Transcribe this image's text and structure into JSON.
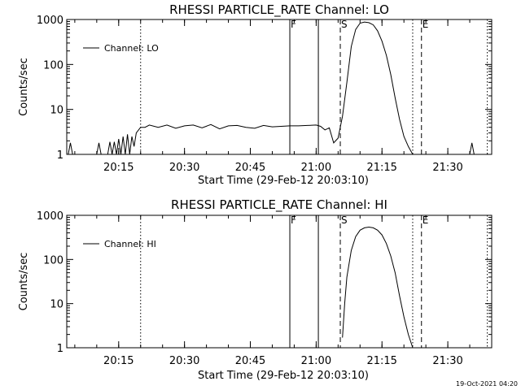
{
  "footer": {
    "timestamp": "19-Oct-2021 04:20"
  },
  "markers": {
    "flare_start": "F",
    "saa_start": "S",
    "saa_end": "E"
  },
  "chart_data": [
    {
      "type": "line",
      "title": "RHESSI PARTICLE_RATE Channel: LO",
      "ylabel": "Counts/sec",
      "xlabel": "Start Time (29-Feb-12 20:03:10)",
      "y_scale": "log",
      "ylim": [
        1,
        1000
      ],
      "xlim": [
        "20:03:10",
        "21:40:00"
      ],
      "x_ticks": [
        "20:15",
        "20:30",
        "20:45",
        "21:00",
        "21:15",
        "21:30"
      ],
      "y_ticks": [
        "1",
        "10",
        "100",
        "1000"
      ],
      "legend": {
        "entry": "Channel: LO",
        "placement": "top-left"
      },
      "vlines": [
        {
          "time": "20:20:00",
          "style": "dotted"
        },
        {
          "time": "20:54:00",
          "style": "solid",
          "label": "F"
        },
        {
          "time": "21:00:30",
          "style": "solid"
        },
        {
          "time": "21:05:30",
          "style": "dashed",
          "label": "S"
        },
        {
          "time": "21:22:00",
          "style": "dotted"
        },
        {
          "time": "21:24:00",
          "style": "dashed",
          "label": "E"
        },
        {
          "time": "21:39:00",
          "style": "dotted"
        }
      ],
      "series": [
        {
          "x": [
            "20:03:30",
            "20:04:00",
            "20:04:30",
            "20:05:00",
            "20:10:00",
            "20:10:30",
            "20:11:00",
            "20:12:00",
            "20:12:30",
            "20:13:00",
            "20:13:30",
            "20:14:00",
            "20:14:30",
            "20:15:00",
            "20:15:30",
            "20:16:00",
            "20:16:30",
            "20:17:00",
            "20:17:30",
            "20:18:00",
            "20:18:30",
            "20:19:00",
            "20:20:00",
            "20:21:00",
            "20:22:00",
            "20:24:00",
            "20:26:00",
            "20:28:00",
            "20:30:00",
            "20:32:00",
            "20:34:00",
            "20:36:00",
            "20:38:00",
            "20:40:00",
            "20:42:00",
            "20:44:00",
            "20:46:00",
            "20:48:00",
            "20:50:00",
            "20:52:00",
            "20:54:00",
            "20:56:00",
            "20:58:00",
            "21:00:00",
            "21:01:00",
            "21:02:00",
            "21:03:00",
            "21:04:00",
            "21:05:00",
            "21:06:00",
            "21:07:00",
            "21:08:00",
            "21:09:00",
            "21:10:00",
            "21:11:00",
            "21:12:00",
            "21:13:00",
            "21:14:00",
            "21:15:00",
            "21:16:00",
            "21:17:00",
            "21:18:00",
            "21:19:00",
            "21:20:00",
            "21:21:00",
            "21:22:00",
            "21:23:00",
            "21:24:00",
            "21:24:30",
            "21:35:00",
            "21:35:30",
            "21:36:00"
          ],
          "y": [
            1,
            1.8,
            1,
            1,
            1,
            1.8,
            1,
            1,
            1,
            1.9,
            1,
            1.9,
            1,
            2.2,
            1,
            2.5,
            1,
            2.8,
            1,
            2.5,
            1.5,
            3,
            4,
            4,
            4.5,
            4,
            4.5,
            3.8,
            4.3,
            4.5,
            3.9,
            4.6,
            3.7,
            4.3,
            4.4,
            4,
            3.8,
            4.4,
            4.1,
            4.2,
            4.3,
            4.3,
            4.4,
            4.5,
            4.2,
            3.5,
            3.9,
            1.8,
            2.3,
            7,
            40,
            250,
            600,
            830,
            880,
            850,
            760,
            560,
            330,
            160,
            60,
            18,
            6,
            2.5,
            1.5,
            1,
            1,
            1,
            1,
            1,
            1.8,
            1
          ]
        }
      ]
    },
    {
      "type": "line",
      "title": "RHESSI PARTICLE_RATE Channel: HI",
      "ylabel": "Counts/sec",
      "xlabel": "Start Time (29-Feb-12 20:03:10)",
      "y_scale": "log",
      "ylim": [
        1,
        1000
      ],
      "xlim": [
        "20:03:10",
        "21:40:00"
      ],
      "x_ticks": [
        "20:15",
        "20:30",
        "20:45",
        "21:00",
        "21:15",
        "21:30"
      ],
      "y_ticks": [
        "1",
        "10",
        "100",
        "1000"
      ],
      "legend": {
        "entry": "Channel: HI",
        "placement": "top-left"
      },
      "vlines": [
        {
          "time": "20:20:00",
          "style": "dotted"
        },
        {
          "time": "20:54:00",
          "style": "solid",
          "label": "F"
        },
        {
          "time": "21:00:30",
          "style": "solid"
        },
        {
          "time": "21:05:30",
          "style": "dashed",
          "label": "S"
        },
        {
          "time": "21:22:00",
          "style": "dotted"
        },
        {
          "time": "21:24:00",
          "style": "dashed",
          "label": "E"
        },
        {
          "time": "21:39:00",
          "style": "dotted"
        }
      ],
      "series": [
        {
          "x": [
            "21:06:00",
            "21:06:30",
            "21:07:00",
            "21:08:00",
            "21:09:00",
            "21:10:00",
            "21:11:00",
            "21:12:00",
            "21:13:00",
            "21:14:00",
            "21:15:00",
            "21:16:00",
            "21:17:00",
            "21:18:00",
            "21:19:00",
            "21:20:00",
            "21:21:00",
            "21:22:00"
          ],
          "y": [
            1.7,
            10,
            40,
            160,
            330,
            460,
            520,
            540,
            520,
            460,
            360,
            230,
            120,
            50,
            15,
            5,
            2,
            1
          ]
        }
      ]
    }
  ]
}
